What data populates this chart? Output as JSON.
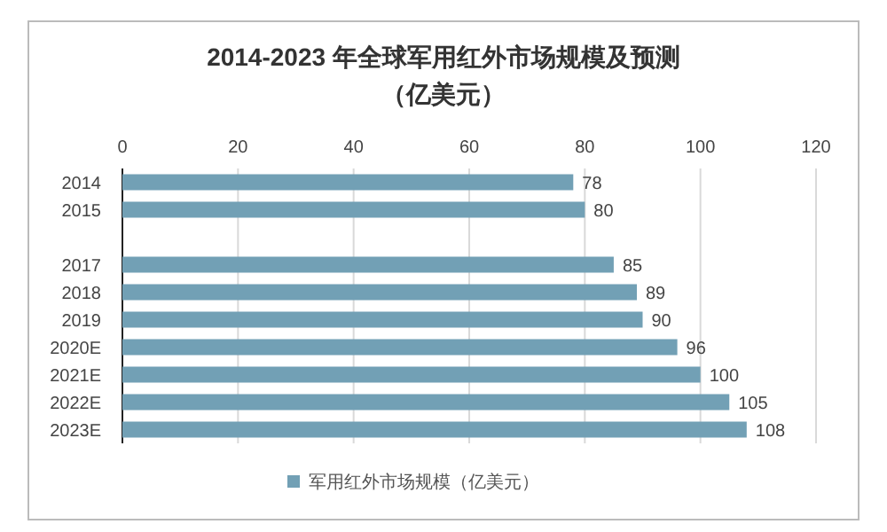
{
  "chart_data": {
    "type": "bar",
    "orientation": "horizontal",
    "title": "2014-2023 年全球军用红外市场规模及预测",
    "subtitle": "（亿美元）",
    "categories": [
      "2014",
      "2015",
      null,
      "2017",
      "2018",
      "2019",
      "2020E",
      "2021E",
      "2022E",
      "2023E"
    ],
    "series": [
      {
        "name": "军用红外市场规模（亿美元）",
        "color": "#72a0b5",
        "values": [
          78,
          80,
          null,
          85,
          89,
          90,
          96,
          100,
          105,
          108
        ]
      }
    ],
    "xlim": [
      0,
      120
    ],
    "xticks": [
      0,
      20,
      40,
      60,
      80,
      100,
      120
    ],
    "grid": "x",
    "legend": "bottom",
    "data_labels": true
  }
}
